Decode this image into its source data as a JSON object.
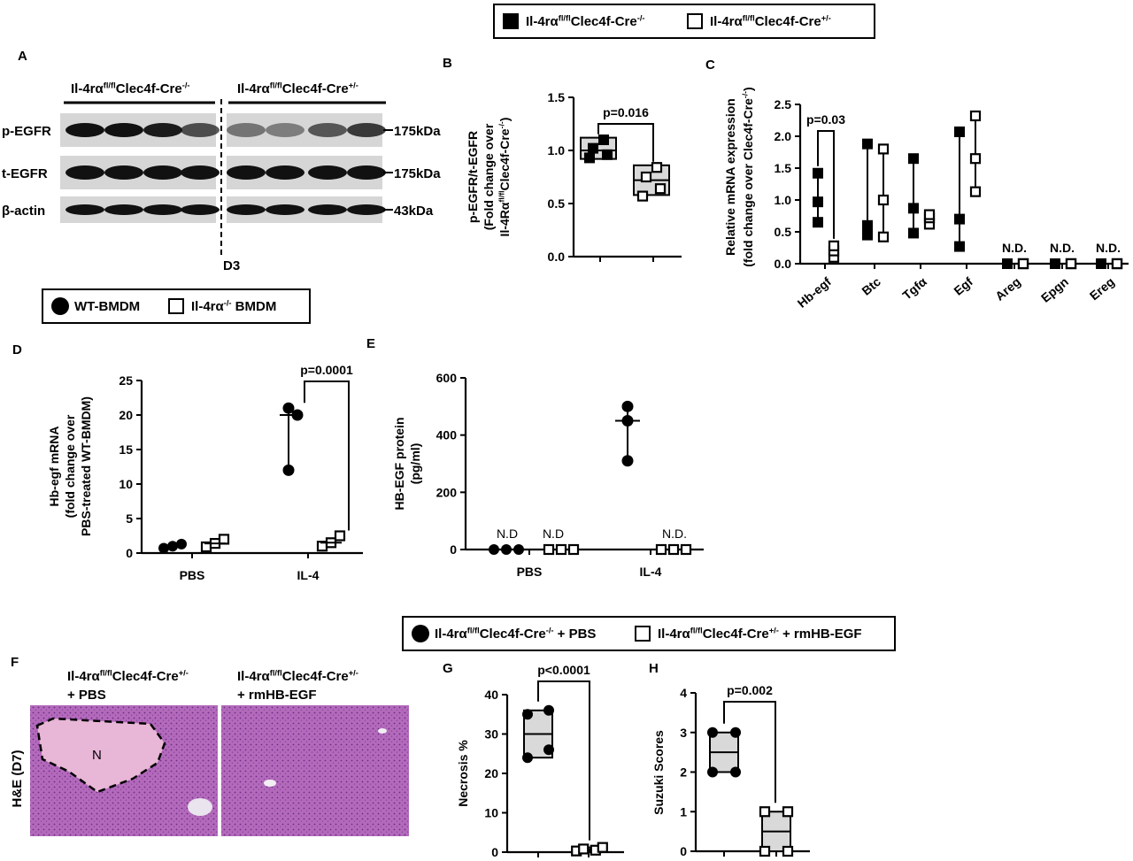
{
  "legends": {
    "top": [
      "Il-4rα<sup>fl/fl</sup>Clec4f-Cre<sup>-/-</sup>",
      "Il-4rα<sup>fl/fl</sup>Clec4f-Cre<sup>+/-</sup>"
    ],
    "middle": [
      "WT-BMDM",
      "Il-4rα<sup>-/-</sup> BMDM"
    ],
    "bottom": [
      "Il-4rα<sup>fl/fl</sup>Clec4f-Cre<sup>-/-</sup> + PBS",
      "Il-4rα<sup>fl/fl</sup>Clec4f-Cre<sup>+/-</sup> + rmHB-EGF"
    ]
  },
  "panel_letters": [
    "A",
    "B",
    "C",
    "D",
    "E",
    "F",
    "G",
    "H"
  ],
  "panelA": {
    "group_left": "Il-4rα<sup>fl/fl</sup>Clec4f-Cre<sup>-/-</sup>",
    "group_right": "Il-4rα<sup>fl/fl</sup>Clec4f-Cre<sup>+/-</sup>",
    "rows": [
      {
        "label": "p-EGFR",
        "kda": "175kDa"
      },
      {
        "label": "t-EGFR",
        "kda": "175kDa"
      },
      {
        "label": "β-actin",
        "kda": "43kDa"
      }
    ],
    "timepoint": "D3"
  },
  "panelF": {
    "title_left": [
      "Il-4rα<sup>fl/fl</sup>Clec4f-Cre<sup>+/-</sup>",
      "+ PBS"
    ],
    "title_right": [
      "Il-4rα<sup>fl/fl</sup>Clec4f-Cre<sup>+/-</sup>",
      "+ rmHB-EGF"
    ],
    "side_label": "H&E (D7)",
    "necrosis_mark": "N"
  },
  "colors": {
    "box_fill": "#d9d9d9",
    "tissue": "#b35fb4",
    "tissue_light": "#e8b6d6"
  },
  "chart_data": [
    {
      "panel": "B",
      "type": "box",
      "ylabel": [
        "p-EGFR/t-EGFR",
        "(Fold change over",
        "Il-4Rα<sup>fl/fl</sup>Clec4f-Cre<sup>-/-</sup>)"
      ],
      "yticks": [
        "0.0",
        "0.5",
        "1.0",
        "1.5"
      ],
      "ylim": [
        0,
        1.5
      ],
      "annotation": "p=0.016",
      "series": [
        {
          "marker": "filled-square",
          "values": [
            0.93,
            0.96,
            1.02,
            1.1
          ],
          "box": [
            0.92,
            1.0,
            1.12
          ]
        },
        {
          "marker": "open-square",
          "values": [
            0.57,
            0.64,
            0.75,
            0.84
          ],
          "box": [
            0.58,
            0.72,
            0.86
          ]
        }
      ]
    },
    {
      "panel": "C",
      "type": "scatter",
      "ylabel": [
        "Relative mRNA expression",
        "(fold change over Clec4f-Cre<sup>-/-</sup>)"
      ],
      "yticks": [
        "0.0",
        "0.5",
        "1.0",
        "1.5",
        "2.0",
        "2.5"
      ],
      "ylim": [
        0,
        2.5
      ],
      "categories": [
        "Hb-egf",
        "Btc",
        "Tgfα",
        "Egf",
        "Areg",
        "Epgn",
        "Ereg"
      ],
      "annotations": [
        {
          "category": "Hb-egf",
          "text": "p=0.03"
        },
        {
          "category": "Areg",
          "text": "N.D."
        },
        {
          "category": "Epgn",
          "text": "N.D."
        },
        {
          "category": "Ereg",
          "text": "N.D."
        }
      ],
      "series": [
        {
          "marker": "filled-square",
          "values": [
            [
              0.65,
              0.97,
              1.42
            ],
            [
              0.45,
              0.6,
              1.88
            ],
            [
              0.48,
              0.87,
              1.65
            ],
            [
              0.27,
              0.7,
              2.07
            ],
            [
              0,
              0,
              0
            ],
            [
              0,
              0,
              0
            ],
            [
              0,
              0,
              0
            ]
          ]
        },
        {
          "marker": "open-square",
          "values": [
            [
              0.1,
              0.2,
              0.28
            ],
            [
              0.42,
              1.0,
              1.8
            ],
            [
              0.62,
              0.72,
              0.77
            ],
            [
              1.13,
              1.65,
              2.32
            ],
            [
              0,
              0,
              0
            ],
            [
              0,
              0,
              0
            ],
            [
              0,
              0,
              0
            ]
          ]
        }
      ]
    },
    {
      "panel": "D",
      "type": "scatter",
      "ylabel": [
        "Hb-egf mRNA",
        "(fold change over",
        "PBS-treated WT-BMDM)"
      ],
      "yticks": [
        "0",
        "5",
        "10",
        "15",
        "20",
        "25"
      ],
      "ylim": [
        0,
        25
      ],
      "categories": [
        "PBS",
        "IL-4"
      ],
      "annotation": "p=0.0001",
      "series": [
        {
          "marker": "filled-circle",
          "values": [
            [
              0.7,
              1.0,
              1.3
            ],
            [
              12.0,
              20.0,
              21.0
            ]
          ]
        },
        {
          "marker": "open-square",
          "values": [
            [
              0.9,
              1.4,
              2.0
            ],
            [
              1.0,
              1.5,
              2.5
            ]
          ]
        }
      ]
    },
    {
      "panel": "E",
      "type": "scatter",
      "ylabel": [
        "HB-EGF protein",
        "(pg/ml)"
      ],
      "yticks": [
        "0",
        "200",
        "400",
        "600"
      ],
      "ylim": [
        0,
        600
      ],
      "categories": [
        "PBS",
        "IL-4"
      ],
      "annotations": [
        "N.D",
        "N.D",
        "N.D."
      ],
      "series": [
        {
          "marker": "filled-circle",
          "values": [
            [
              0,
              0,
              0
            ],
            [
              310,
              450,
              500
            ]
          ]
        },
        {
          "marker": "open-square",
          "values": [
            [
              0,
              0,
              0
            ],
            [
              0,
              0,
              0
            ]
          ]
        }
      ]
    },
    {
      "panel": "G",
      "type": "box",
      "ylabel": [
        "Necrosis %"
      ],
      "yticks": [
        "0",
        "10",
        "20",
        "30",
        "40"
      ],
      "ylim": [
        0,
        40
      ],
      "annotation": "p<0.0001",
      "series": [
        {
          "marker": "filled-circle",
          "values": [
            24,
            26,
            35,
            36
          ],
          "box": [
            24,
            30,
            36
          ]
        },
        {
          "marker": "open-square",
          "values": [
            0.3,
            0.5,
            0.8,
            1.2
          ],
          "box": [
            0.3,
            0.7,
            1.2
          ]
        }
      ]
    },
    {
      "panel": "H",
      "type": "box",
      "ylabel": [
        "Suzuki Scores"
      ],
      "yticks": [
        "0",
        "1",
        "2",
        "3",
        "4"
      ],
      "ylim": [
        0,
        4
      ],
      "annotation": "p=0.002",
      "series": [
        {
          "marker": "filled-circle",
          "values": [
            2,
            2,
            3,
            3
          ],
          "box": [
            2,
            2.5,
            3
          ]
        },
        {
          "marker": "open-square",
          "values": [
            0,
            0,
            1,
            1
          ],
          "box": [
            0,
            0.5,
            1
          ]
        }
      ]
    }
  ]
}
